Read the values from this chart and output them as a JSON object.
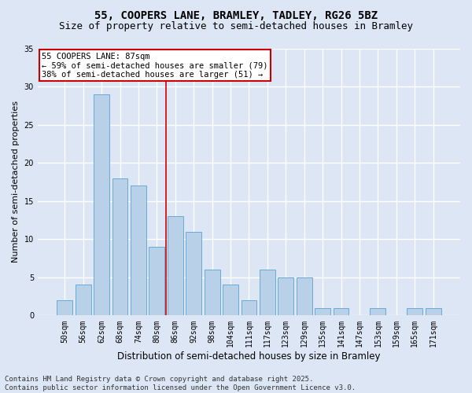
{
  "title1": "55, COOPERS LANE, BRAMLEY, TADLEY, RG26 5BZ",
  "title2": "Size of property relative to semi-detached houses in Bramley",
  "xlabel": "Distribution of semi-detached houses by size in Bramley",
  "ylabel": "Number of semi-detached properties",
  "categories": [
    "50sqm",
    "56sqm",
    "62sqm",
    "68sqm",
    "74sqm",
    "80sqm",
    "86sqm",
    "92sqm",
    "98sqm",
    "104sqm",
    "111sqm",
    "117sqm",
    "123sqm",
    "129sqm",
    "135sqm",
    "141sqm",
    "147sqm",
    "153sqm",
    "159sqm",
    "165sqm",
    "171sqm"
  ],
  "values": [
    2,
    4,
    29,
    18,
    17,
    9,
    13,
    11,
    6,
    4,
    2,
    6,
    5,
    5,
    1,
    1,
    0,
    1,
    0,
    1,
    1
  ],
  "bar_color": "#b8d0e8",
  "bar_edge_color": "#6aaad4",
  "background_color": "#dce6f5",
  "grid_color": "#ffffff",
  "annotation_title": "55 COOPERS LANE: 87sqm",
  "annotation_line1": "← 59% of semi-detached houses are smaller (79)",
  "annotation_line2": "38% of semi-detached houses are larger (51) →",
  "annotation_box_color": "#ffffff",
  "annotation_border_color": "#cc0000",
  "red_line_color": "#cc0000",
  "footer": "Contains HM Land Registry data © Crown copyright and database right 2025.\nContains public sector information licensed under the Open Government Licence v3.0.",
  "ylim": [
    0,
    35
  ],
  "yticks": [
    0,
    5,
    10,
    15,
    20,
    25,
    30,
    35
  ],
  "title_fontsize": 10,
  "subtitle_fontsize": 9,
  "ylabel_fontsize": 8,
  "xlabel_fontsize": 8.5,
  "tick_fontsize": 7,
  "footer_fontsize": 6.5,
  "annot_fontsize": 7.5
}
